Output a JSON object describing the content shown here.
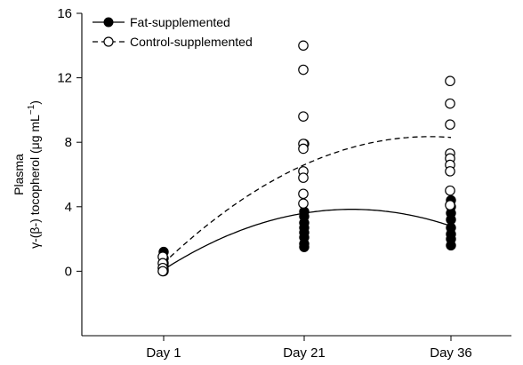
{
  "chart_data": {
    "type": "scatter",
    "title": "",
    "xlabel": "",
    "ylabel_line1": "Plasma",
    "ylabel_line2": "γ-(β-) tocopherol (μg mL",
    "ylabel_sup": "−1",
    "ylabel_close": ")",
    "categories": [
      "Day 1",
      "Day 21",
      "Day 36"
    ],
    "ylim": [
      -4,
      16
    ],
    "yticks": [
      0,
      4,
      8,
      12,
      16
    ],
    "grid": false,
    "legend_position": "top-left",
    "series": [
      {
        "name": "Fat-supplemented",
        "marker": "filled-circle",
        "line_style": "solid",
        "color": "#000000",
        "points": [
          {
            "x": "Day 1",
            "y": 1.2
          },
          {
            "x": "Day 1",
            "y": 0.8
          },
          {
            "x": "Day 1",
            "y": 0.5
          },
          {
            "x": "Day 1",
            "y": 0.3
          },
          {
            "x": "Day 1",
            "y": 0.1
          },
          {
            "x": "Day 1",
            "y": 0.0
          },
          {
            "x": "Day 21",
            "y": 7.9
          },
          {
            "x": "Day 21",
            "y": 3.7
          },
          {
            "x": "Day 21",
            "y": 3.4
          },
          {
            "x": "Day 21",
            "y": 3.0
          },
          {
            "x": "Day 21",
            "y": 2.7
          },
          {
            "x": "Day 21",
            "y": 2.4
          },
          {
            "x": "Day 21",
            "y": 2.1
          },
          {
            "x": "Day 21",
            "y": 1.7
          },
          {
            "x": "Day 21",
            "y": 1.5
          },
          {
            "x": "Day 36",
            "y": 4.4
          },
          {
            "x": "Day 36",
            "y": 4.0
          },
          {
            "x": "Day 36",
            "y": 3.6
          },
          {
            "x": "Day 36",
            "y": 3.2
          },
          {
            "x": "Day 36",
            "y": 2.7
          },
          {
            "x": "Day 36",
            "y": 2.3
          },
          {
            "x": "Day 36",
            "y": 2.0
          },
          {
            "x": "Day 36",
            "y": 1.6
          }
        ],
        "trend": {
          "x": [
            "Day 1",
            "Day 21",
            "Day 36"
          ],
          "y": [
            0.1,
            3.6,
            2.8
          ]
        }
      },
      {
        "name": "Control-supplemented",
        "marker": "open-circle",
        "line_style": "dashed",
        "color": "#000000",
        "points": [
          {
            "x": "Day 1",
            "y": 0.9
          },
          {
            "x": "Day 1",
            "y": 0.5
          },
          {
            "x": "Day 1",
            "y": 0.2
          },
          {
            "x": "Day 1",
            "y": 0.0
          },
          {
            "x": "Day 21",
            "y": 14.0
          },
          {
            "x": "Day 21",
            "y": 12.5
          },
          {
            "x": "Day 21",
            "y": 9.6
          },
          {
            "x": "Day 21",
            "y": 7.9
          },
          {
            "x": "Day 21",
            "y": 7.6
          },
          {
            "x": "Day 21",
            "y": 6.2
          },
          {
            "x": "Day 21",
            "y": 5.8
          },
          {
            "x": "Day 21",
            "y": 4.8
          },
          {
            "x": "Day 21",
            "y": 4.2
          },
          {
            "x": "Day 36",
            "y": 11.8
          },
          {
            "x": "Day 36",
            "y": 10.4
          },
          {
            "x": "Day 36",
            "y": 9.1
          },
          {
            "x": "Day 36",
            "y": 7.3
          },
          {
            "x": "Day 36",
            "y": 7.0
          },
          {
            "x": "Day 36",
            "y": 6.6
          },
          {
            "x": "Day 36",
            "y": 6.2
          },
          {
            "x": "Day 36",
            "y": 5.0
          },
          {
            "x": "Day 36",
            "y": 4.1
          }
        ],
        "trend": {
          "x": [
            "Day 1",
            "Day 21",
            "Day 36"
          ],
          "y": [
            0.5,
            6.6,
            8.3
          ]
        }
      }
    ]
  }
}
